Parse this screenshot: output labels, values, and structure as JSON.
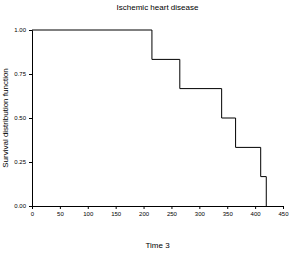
{
  "chart_data": {
    "type": "line",
    "title": "Ischemic heart disease",
    "x_label": "Time 3",
    "y_label": "Survival distribution function",
    "x": [
      0,
      215,
      265,
      340,
      365,
      410,
      420
    ],
    "values": [
      1.0,
      0.833,
      0.667,
      0.5,
      0.333,
      0.167,
      0.0
    ],
    "color": "#000000",
    "line_style": "step",
    "xlim": [
      0,
      450
    ],
    "xticks": [
      0,
      50,
      100,
      150,
      200,
      250,
      300,
      350,
      400,
      450
    ],
    "ylim": [
      0,
      1
    ],
    "yticks": [
      {
        "value": 0,
        "label": "0.00"
      },
      {
        "value": 0.25,
        "label": "0.25"
      },
      {
        "value": 0.5,
        "label": "0.50"
      },
      {
        "value": 0.75,
        "label": "0.75"
      },
      {
        "value": 1,
        "label": "1.00"
      }
    ],
    "grid": false
  }
}
